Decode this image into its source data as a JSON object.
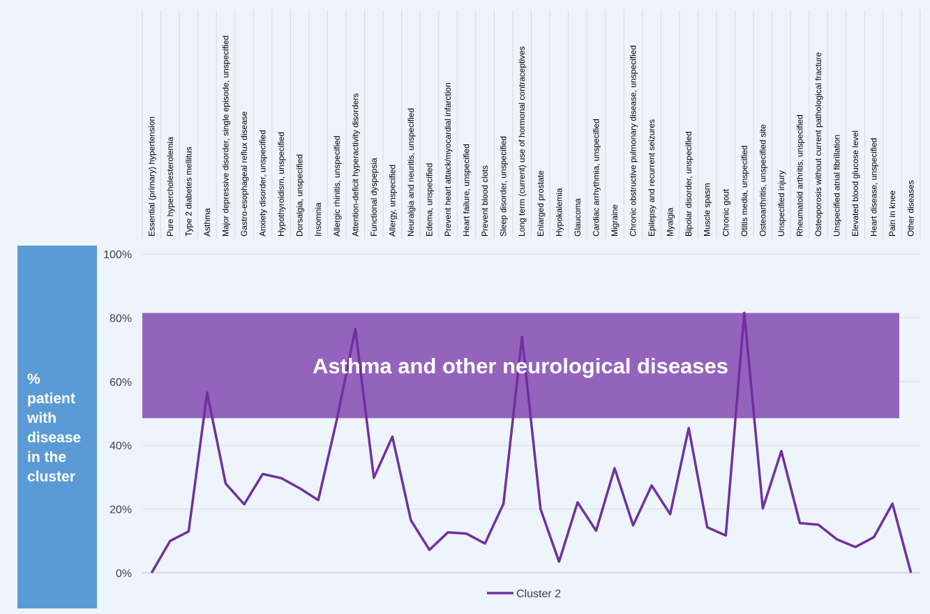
{
  "side_label": "%\npatient\nwith\ndisease\nin the\ncluster",
  "colors": {
    "line": "#7030a0",
    "band": "#8e5bb8",
    "panel": "#5b9bd5",
    "grid": "#d9d9d9",
    "background": "#eef4fb"
  },
  "chart_data": {
    "type": "line",
    "categories": [
      "Essential (primary) hypertension",
      "Pure hypercholesterolemia",
      "Type 2 diabetes mellitus",
      "Asthma",
      "Major depressive disorder, single episode, unspecified",
      "Gastro-esophageal reflux disease",
      "Anxiety disorder, unspecified",
      "Hypothyroidism, unspecified",
      "Dorsalgia, unspecified",
      "Insomnia",
      "Allergic rhinitis, unspecified",
      "Attention-deficit hyperactivity disorders",
      "Functional dyspepsia",
      "Allergy, unspecified",
      "Neuralgia and neuritis, unspecified",
      "Edema, unspecified",
      "Prevent heart attack/myocardial infarction",
      "Heart failure, unspecified",
      "Prevent blood clots",
      "Sleep disorder, unspecified",
      "Long term (current) use of hormonal contraceptives",
      "Enlarged prostate",
      "Hypokalemia",
      "Glaucoma",
      "Cardiac arrhythmia, unspecified",
      "Migraine",
      "Chronic obstructive pulmonary disease, unspecified",
      "Epilepsy and recurrent seizures",
      "Myalgia",
      "Bipolar disorder, unspecified",
      "Muscle spasm",
      "Chronic gout",
      "Otitis media, unspecified",
      "Osteoarthritis, unspecified site",
      "Unspecified injury",
      "Rheumatoid arthritis, unspecified",
      "Osteoporosis without current pathological fracture",
      "Unspecified atrial fibrillation",
      "Elevated blood glucose level",
      "Heart disease, unspecified",
      "Pain in knee",
      "Other diseases"
    ],
    "series": [
      {
        "name": "Cluster 2",
        "values": [
          0,
          10,
          13,
          56.5,
          28,
          21.5,
          31,
          29.7,
          26.5,
          22.8,
          48,
          76.5,
          29.8,
          42.7,
          16.5,
          7.2,
          12.7,
          12.3,
          9.2,
          21.7,
          74,
          20,
          3.5,
          22.1,
          13.2,
          32.8,
          14.9,
          27.4,
          18.4,
          45.4,
          14.3,
          11.7,
          81.5,
          20.2,
          38.2,
          15.6,
          15.1,
          10.5,
          8.1,
          11.2,
          21.7,
          0
        ]
      }
    ],
    "ylim": [
      0,
      100
    ],
    "yticks": [
      "0%",
      "20%",
      "40%",
      "60%",
      "80%",
      "100%"
    ],
    "grid": true,
    "legend": "bottom",
    "annotation": {
      "text": "Asthma and other neurological diseases",
      "y_from": 48.5,
      "y_to": 81.5
    }
  }
}
